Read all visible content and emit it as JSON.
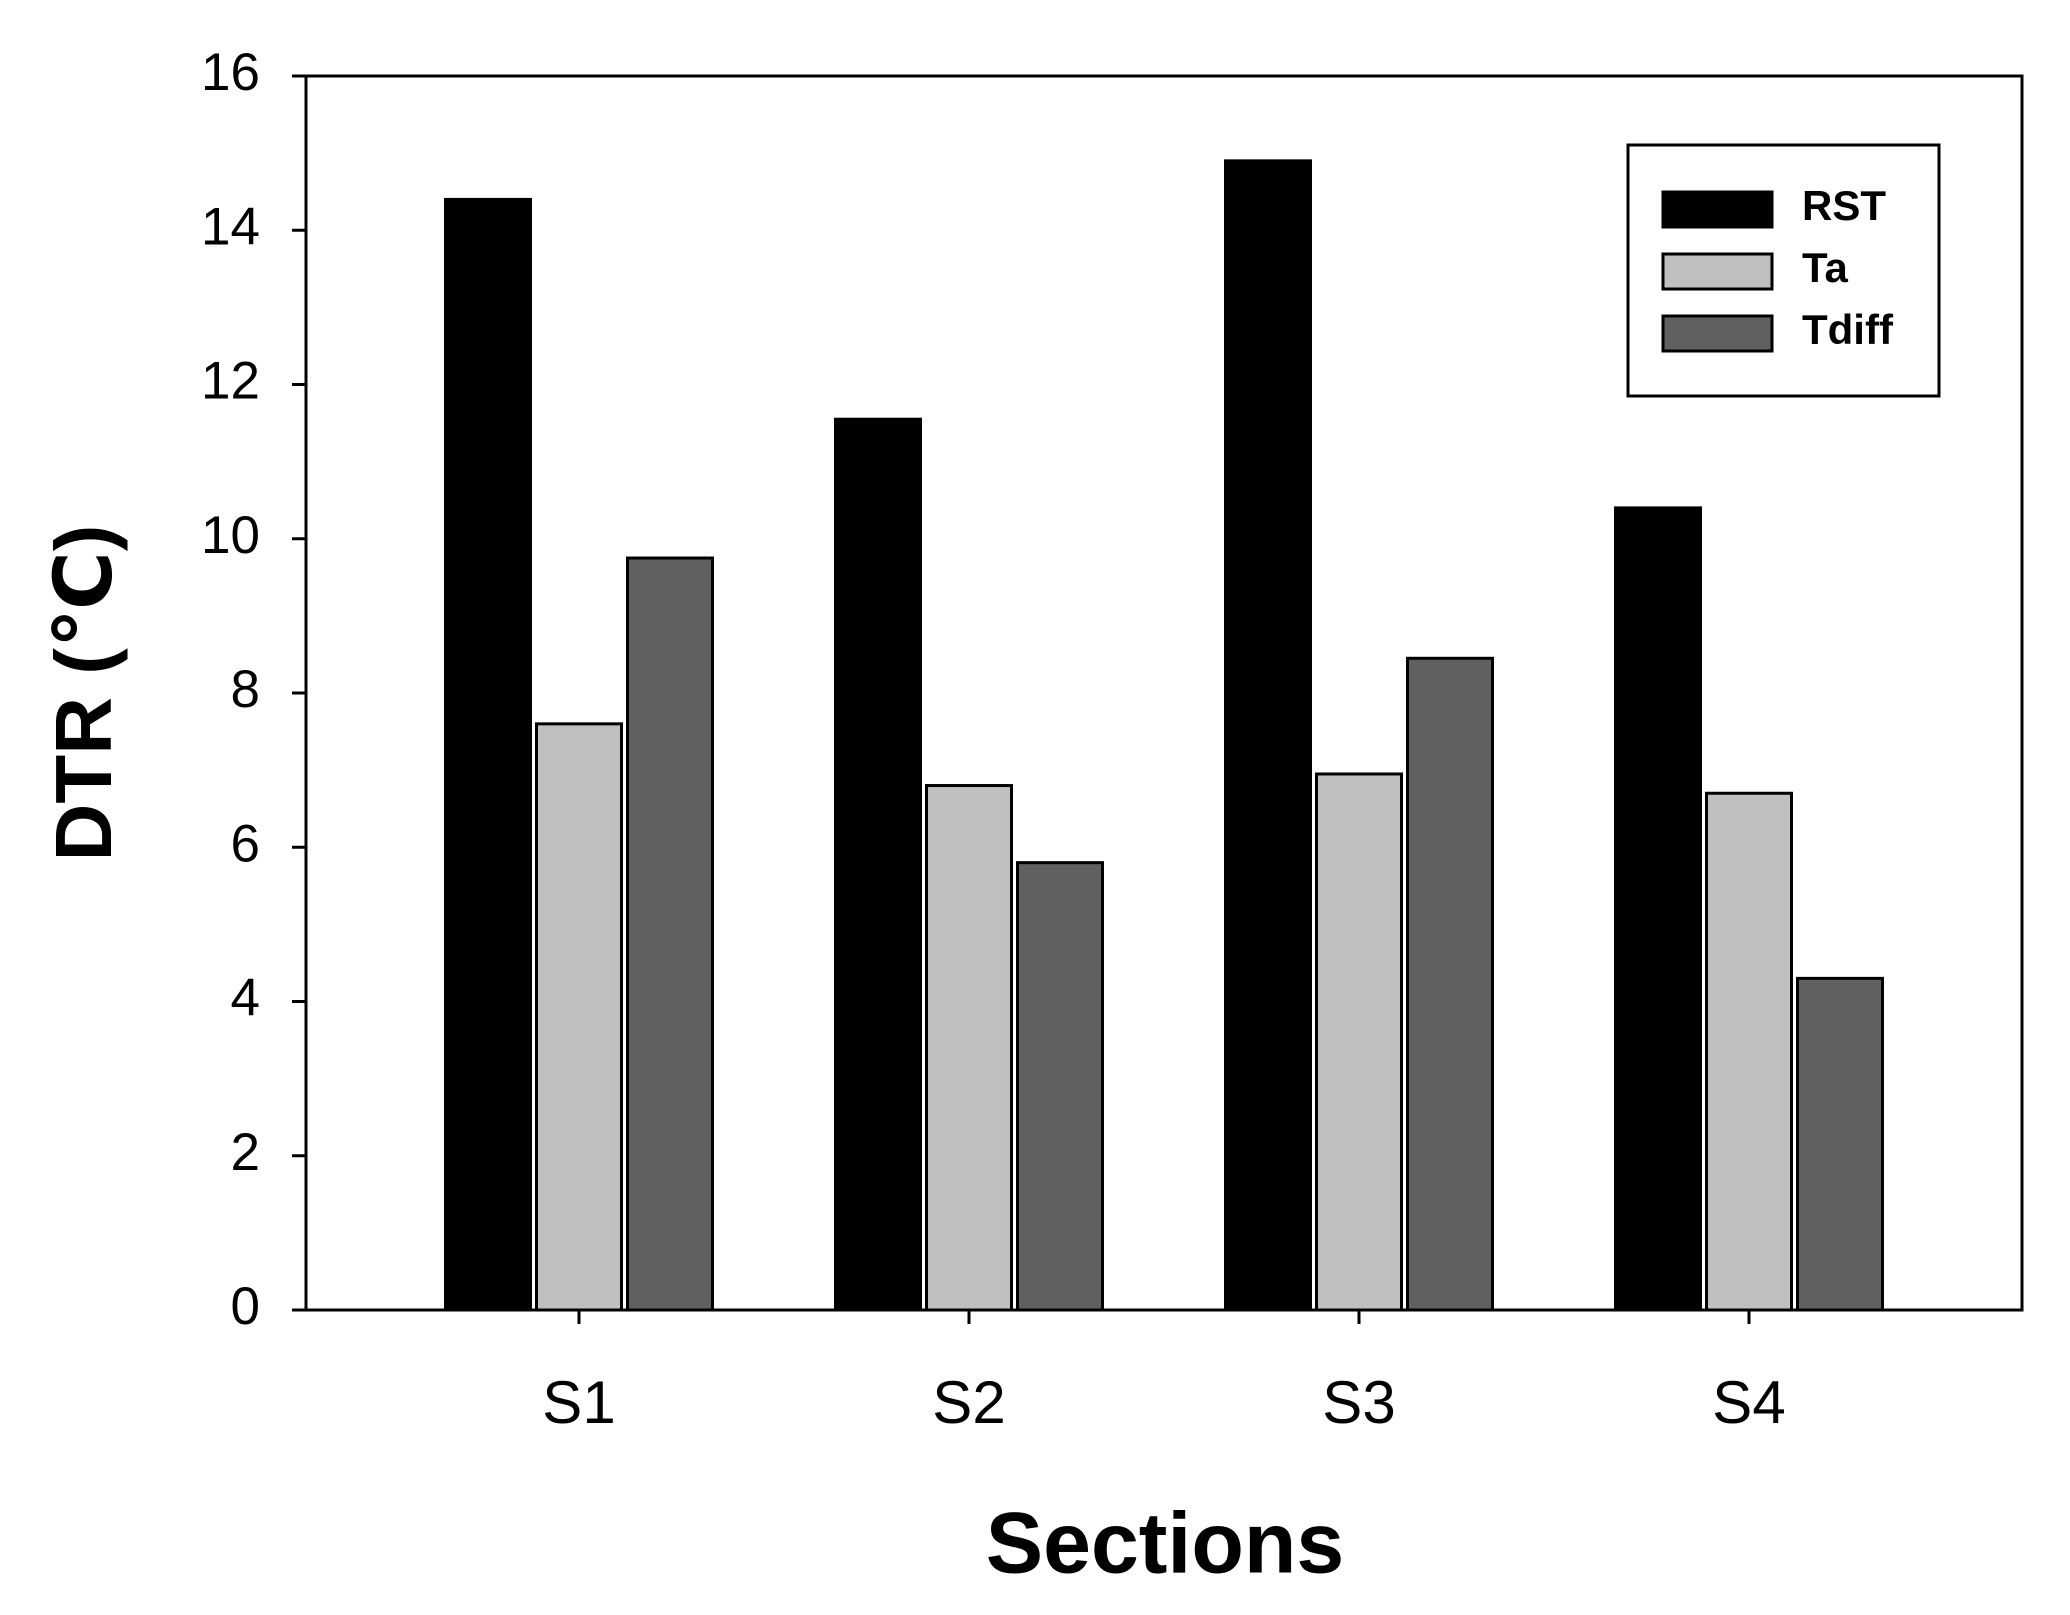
{
  "chart_data": {
    "type": "bar",
    "x_label": "Sections",
    "y_label": "DTR (℃)",
    "categories": [
      "S1",
      "S2",
      "S3",
      "S4"
    ],
    "series": [
      {
        "name": "RST",
        "color": "#000000",
        "values": [
          14.4,
          11.55,
          14.9,
          10.4
        ]
      },
      {
        "name": "Ta",
        "color": "#c0c0c0",
        "values": [
          7.6,
          6.8,
          6.95,
          6.7
        ]
      },
      {
        "name": "Tdiff",
        "color": "#606060",
        "values": [
          9.75,
          5.8,
          8.45,
          4.3
        ]
      }
    ],
    "ylim": [
      0,
      16
    ],
    "yticks": [
      0,
      2,
      4,
      6,
      8,
      10,
      12,
      14,
      16
    ],
    "legend": "upper right"
  }
}
